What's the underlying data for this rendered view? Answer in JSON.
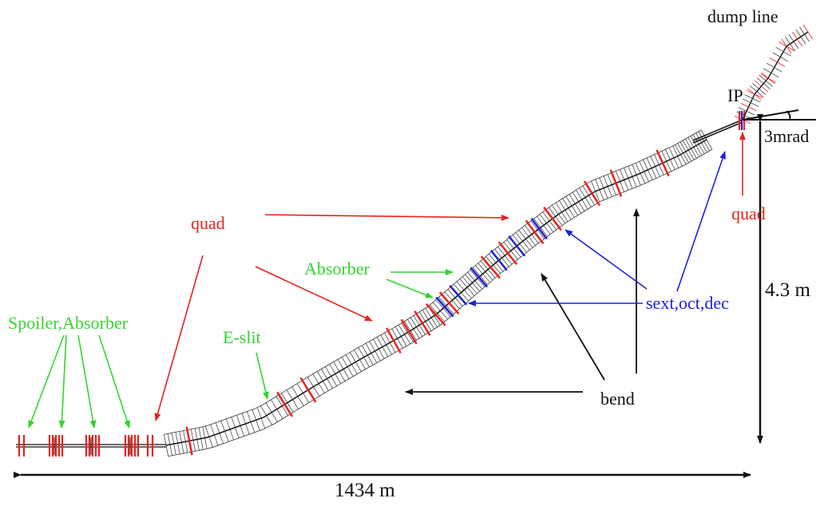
{
  "labels": {
    "dump_line": "dump line",
    "ip": "IP",
    "crossing_angle": "3mrad",
    "quad_top": "quad",
    "quad_left": "quad",
    "absorber": "Absorber",
    "spoiler_absorber": "Spoiler,Absorber",
    "e_slit": "E-slit",
    "sext_oct_dec": "sext,oct,dec",
    "bend": "bend",
    "height": "4.3 m",
    "length": "1434 m"
  },
  "colors": {
    "red": "#e8231e",
    "green": "#35d42f",
    "blue": "#2020d8",
    "black": "#111111"
  }
}
